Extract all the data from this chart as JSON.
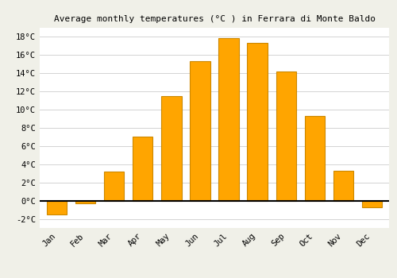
{
  "months": [
    "Jan",
    "Feb",
    "Mar",
    "Apr",
    "May",
    "Jun",
    "Jul",
    "Aug",
    "Sep",
    "Oct",
    "Nov",
    "Dec"
  ],
  "temperatures": [
    -1.5,
    -0.3,
    3.2,
    7.0,
    11.5,
    15.3,
    17.9,
    17.3,
    14.2,
    9.3,
    3.3,
    -0.7
  ],
  "bar_color": "#FFA500",
  "bar_edge_color": "#CC8800",
  "title": "Average monthly temperatures (°C ) in Ferrara di Monte Baldo",
  "ylim": [
    -3,
    19
  ],
  "yticks": [
    -2,
    0,
    2,
    4,
    6,
    8,
    10,
    12,
    14,
    16,
    18
  ],
  "background_color": "#F0F0E8",
  "plot_bg_color": "#FFFFFF",
  "grid_color": "#CCCCCC",
  "title_fontsize": 8,
  "tick_fontsize": 7.5
}
